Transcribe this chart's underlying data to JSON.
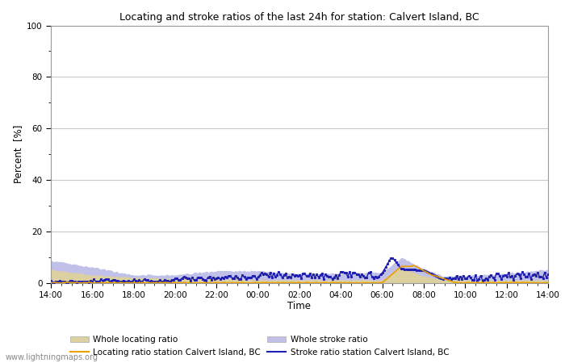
{
  "title": "Locating and stroke ratios of the last 24h for station: Calvert Island, BC",
  "xlabel": "Time",
  "ylabel": "Percent  [%]",
  "xlim": [
    0,
    24
  ],
  "ylim": [
    0,
    100
  ],
  "yticks": [
    0,
    20,
    40,
    60,
    80,
    100
  ],
  "yticks_minor": [
    10,
    30,
    50,
    70,
    90
  ],
  "xtick_labels": [
    "14:00",
    "16:00",
    "18:00",
    "20:00",
    "22:00",
    "00:00",
    "02:00",
    "04:00",
    "06:00",
    "08:00",
    "10:00",
    "12:00",
    "14:00"
  ],
  "background_color": "#ffffff",
  "plot_bg_color": "#ffffff",
  "grid_color": "#c8c8c8",
  "watermark": "www.lightningmaps.org",
  "whole_locating_color": "#ddd0a0",
  "whole_stroke_color": "#c0c0e8",
  "locating_line_color": "#e8a000",
  "stroke_line_color": "#2020b0",
  "legend_labels": [
    "Whole locating ratio",
    "Locating ratio station Calvert Island, BC",
    "Whole stroke ratio",
    "Stroke ratio station Calvert Island, BC"
  ]
}
